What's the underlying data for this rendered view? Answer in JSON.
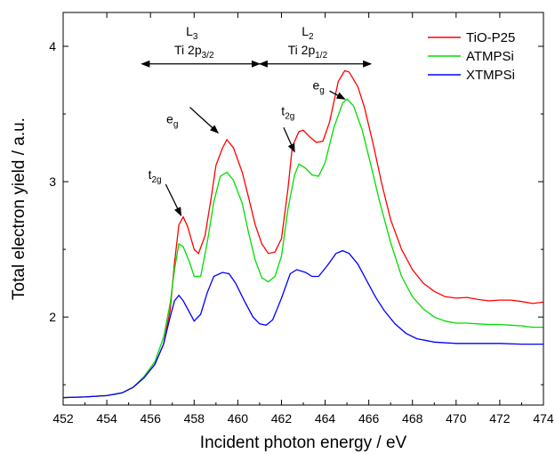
{
  "chart_data": {
    "type": "line",
    "xlabel": "Incident photon energy / eV",
    "ylabel": "Total electron yield / a.u.",
    "xlim": [
      452,
      474
    ],
    "ylim": [
      1.35,
      4.25
    ],
    "x_ticks": [
      452,
      454,
      456,
      458,
      460,
      462,
      464,
      466,
      468,
      470,
      472,
      474
    ],
    "y_ticks": [
      2,
      3,
      4
    ],
    "grid": false,
    "legend_position": "top-right",
    "series": [
      {
        "name": "TiO-P25",
        "color": "#ff0000",
        "points": [
          [
            452,
            1.405
          ],
          [
            453,
            1.41
          ],
          [
            454,
            1.42
          ],
          [
            454.7,
            1.44
          ],
          [
            455.2,
            1.48
          ],
          [
            455.7,
            1.55
          ],
          [
            456.2,
            1.65
          ],
          [
            456.6,
            1.8
          ],
          [
            456.9,
            2.05
          ],
          [
            457.1,
            2.4
          ],
          [
            457.3,
            2.68
          ],
          [
            457.5,
            2.74
          ],
          [
            457.7,
            2.67
          ],
          [
            458.0,
            2.5
          ],
          [
            458.2,
            2.47
          ],
          [
            458.5,
            2.6
          ],
          [
            458.8,
            2.9
          ],
          [
            459.0,
            3.12
          ],
          [
            459.3,
            3.25
          ],
          [
            459.5,
            3.31
          ],
          [
            459.8,
            3.25
          ],
          [
            460.2,
            3.07
          ],
          [
            460.5,
            2.88
          ],
          [
            460.8,
            2.68
          ],
          [
            461.1,
            2.54
          ],
          [
            461.4,
            2.47
          ],
          [
            461.7,
            2.48
          ],
          [
            462.0,
            2.58
          ],
          [
            462.3,
            2.95
          ],
          [
            462.5,
            3.26
          ],
          [
            462.8,
            3.37
          ],
          [
            463.0,
            3.38
          ],
          [
            463.3,
            3.33
          ],
          [
            463.6,
            3.29
          ],
          [
            463.9,
            3.3
          ],
          [
            464.2,
            3.44
          ],
          [
            464.6,
            3.74
          ],
          [
            464.9,
            3.82
          ],
          [
            465.1,
            3.81
          ],
          [
            465.5,
            3.7
          ],
          [
            465.8,
            3.55
          ],
          [
            466.2,
            3.28
          ],
          [
            466.6,
            2.98
          ],
          [
            467.0,
            2.72
          ],
          [
            467.5,
            2.5
          ],
          [
            468.0,
            2.35
          ],
          [
            468.5,
            2.25
          ],
          [
            469.0,
            2.19
          ],
          [
            469.5,
            2.15
          ],
          [
            470.0,
            2.14
          ],
          [
            470.5,
            2.145
          ],
          [
            471.0,
            2.13
          ],
          [
            471.5,
            2.12
          ],
          [
            472.0,
            2.125
          ],
          [
            472.5,
            2.125
          ],
          [
            473.0,
            2.115
          ],
          [
            473.5,
            2.1
          ],
          [
            474,
            2.11
          ]
        ]
      },
      {
        "name": "ATMPSi",
        "color": "#00dd00",
        "points": [
          [
            452,
            1.405
          ],
          [
            453,
            1.41
          ],
          [
            454,
            1.42
          ],
          [
            454.7,
            1.44
          ],
          [
            455.2,
            1.48
          ],
          [
            455.7,
            1.56
          ],
          [
            456.2,
            1.67
          ],
          [
            456.6,
            1.85
          ],
          [
            456.9,
            2.1
          ],
          [
            457.1,
            2.35
          ],
          [
            457.3,
            2.54
          ],
          [
            457.5,
            2.52
          ],
          [
            457.8,
            2.4
          ],
          [
            458.0,
            2.3
          ],
          [
            458.3,
            2.3
          ],
          [
            458.6,
            2.55
          ],
          [
            458.9,
            2.85
          ],
          [
            459.2,
            3.04
          ],
          [
            459.5,
            3.07
          ],
          [
            459.8,
            3.01
          ],
          [
            460.2,
            2.84
          ],
          [
            460.5,
            2.62
          ],
          [
            460.8,
            2.42
          ],
          [
            461.1,
            2.29
          ],
          [
            461.4,
            2.26
          ],
          [
            461.7,
            2.3
          ],
          [
            462.0,
            2.45
          ],
          [
            462.3,
            2.8
          ],
          [
            462.6,
            3.05
          ],
          [
            462.8,
            3.13
          ],
          [
            463.1,
            3.1
          ],
          [
            463.4,
            3.05
          ],
          [
            463.7,
            3.04
          ],
          [
            464.0,
            3.14
          ],
          [
            464.4,
            3.4
          ],
          [
            464.8,
            3.58
          ],
          [
            465.0,
            3.61
          ],
          [
            465.3,
            3.56
          ],
          [
            465.7,
            3.38
          ],
          [
            466.1,
            3.12
          ],
          [
            466.5,
            2.85
          ],
          [
            467.0,
            2.55
          ],
          [
            467.5,
            2.3
          ],
          [
            468.0,
            2.15
          ],
          [
            468.5,
            2.06
          ],
          [
            469.0,
            2.0
          ],
          [
            469.5,
            1.97
          ],
          [
            470.0,
            1.955
          ],
          [
            470.5,
            1.955
          ],
          [
            471.0,
            1.95
          ],
          [
            471.5,
            1.945
          ],
          [
            472.0,
            1.945
          ],
          [
            472.5,
            1.94
          ],
          [
            473.0,
            1.935
          ],
          [
            473.5,
            1.925
          ],
          [
            474,
            1.925
          ]
        ]
      },
      {
        "name": "XTMPSi",
        "color": "#0000ff",
        "points": [
          [
            452,
            1.405
          ],
          [
            453,
            1.41
          ],
          [
            454,
            1.42
          ],
          [
            454.7,
            1.44
          ],
          [
            455.2,
            1.48
          ],
          [
            455.7,
            1.55
          ],
          [
            456.2,
            1.65
          ],
          [
            456.6,
            1.8
          ],
          [
            456.9,
            2.0
          ],
          [
            457.1,
            2.12
          ],
          [
            457.3,
            2.16
          ],
          [
            457.5,
            2.12
          ],
          [
            457.8,
            2.03
          ],
          [
            458.0,
            1.97
          ],
          [
            458.3,
            2.02
          ],
          [
            458.6,
            2.18
          ],
          [
            458.9,
            2.3
          ],
          [
            459.3,
            2.33
          ],
          [
            459.6,
            2.32
          ],
          [
            459.9,
            2.25
          ],
          [
            460.3,
            2.12
          ],
          [
            460.7,
            2.0
          ],
          [
            461.0,
            1.95
          ],
          [
            461.3,
            1.94
          ],
          [
            461.6,
            1.98
          ],
          [
            462.0,
            2.14
          ],
          [
            462.4,
            2.32
          ],
          [
            462.7,
            2.35
          ],
          [
            463.1,
            2.33
          ],
          [
            463.4,
            2.3
          ],
          [
            463.7,
            2.3
          ],
          [
            464.1,
            2.38
          ],
          [
            464.5,
            2.47
          ],
          [
            464.8,
            2.49
          ],
          [
            465.1,
            2.47
          ],
          [
            465.5,
            2.39
          ],
          [
            465.9,
            2.27
          ],
          [
            466.3,
            2.15
          ],
          [
            466.7,
            2.05
          ],
          [
            467.2,
            1.95
          ],
          [
            467.7,
            1.88
          ],
          [
            468.2,
            1.84
          ],
          [
            469.0,
            1.815
          ],
          [
            470.0,
            1.805
          ],
          [
            471.0,
            1.805
          ],
          [
            472.0,
            1.805
          ],
          [
            473.0,
            1.8
          ],
          [
            474,
            1.8
          ]
        ]
      }
    ],
    "annotations": [
      {
        "id": "l3",
        "base": "L",
        "sub": "3",
        "x": 457.9,
        "y": 4.08
      },
      {
        "id": "ti2p32",
        "base": "Ti 2p",
        "sub": "3/2",
        "x": 458.0,
        "y": 3.94
      },
      {
        "id": "l2",
        "base": "L",
        "sub": "2",
        "x": 463.2,
        "y": 4.08
      },
      {
        "id": "ti2p12",
        "base": "Ti 2p",
        "sub": "1/2",
        "x": 463.2,
        "y": 3.94
      },
      {
        "id": "eg1",
        "base": "e",
        "sub": "g",
        "x": 457.0,
        "y": 3.43
      },
      {
        "id": "t2g2",
        "base": "t",
        "sub": "2g",
        "x": 462.3,
        "y": 3.49
      },
      {
        "id": "eg2",
        "base": "e",
        "sub": "g",
        "x": 463.7,
        "y": 3.68
      },
      {
        "id": "t2g1",
        "base": "t",
        "sub": "2g",
        "x": 456.2,
        "y": 3.02
      }
    ],
    "range_arrows": [
      {
        "id": "range-ti2p32",
        "from": 455.6,
        "to": 461.0,
        "y": 3.87
      },
      {
        "id": "range-ti2p12",
        "from": 461.0,
        "to": 466.1,
        "y": 3.87
      }
    ],
    "pointer_arrows": [
      {
        "id": "arrow-t2g-1",
        "from": [
          456.7,
          2.98
        ],
        "to": [
          457.4,
          2.75
        ]
      },
      {
        "id": "arrow-eg-1",
        "from": [
          457.8,
          3.55
        ],
        "to": [
          459.1,
          3.36
        ]
      },
      {
        "id": "arrow-t2g-2",
        "from": [
          462.1,
          3.4
        ],
        "to": [
          462.6,
          3.22
        ]
      },
      {
        "id": "arrow-eg-2",
        "from": [
          464.2,
          3.67
        ],
        "to": [
          464.9,
          3.61
        ]
      }
    ]
  }
}
